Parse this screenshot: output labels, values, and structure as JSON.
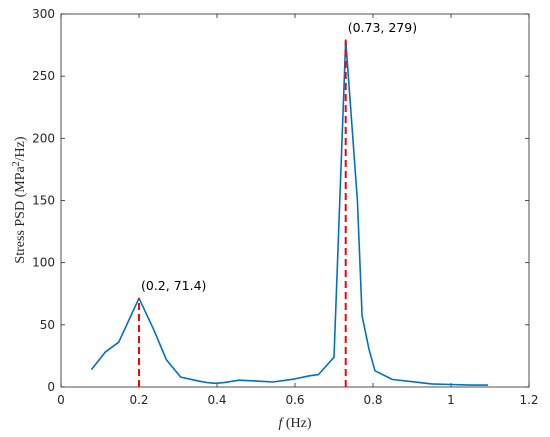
{
  "chart_data": {
    "type": "line",
    "title": "",
    "xlabel_italic": "f",
    "xlabel_rest": " (Hz)",
    "ylabel_base": "Stress PSD (MPa",
    "ylabel_sup": "2",
    "ylabel_end": "/Hz)",
    "xlim": [
      0,
      1.2
    ],
    "ylim": [
      0,
      300
    ],
    "xticks": [
      0,
      0.2,
      0.4,
      0.6,
      0.8,
      1,
      1.2
    ],
    "xtick_labels": [
      "0",
      "0.2",
      "0.4",
      "0.6",
      "0.8",
      "1",
      "1.2"
    ],
    "yticks": [
      0,
      50,
      100,
      150,
      200,
      250,
      300
    ],
    "ytick_labels": [
      "0",
      "50",
      "100",
      "150",
      "200",
      "250",
      "300"
    ],
    "grid": false,
    "series": [
      {
        "color": "#0072BD",
        "x": [
          0.078,
          0.113,
          0.148,
          0.2,
          0.238,
          0.27,
          0.307,
          0.35,
          0.375,
          0.395,
          0.418,
          0.457,
          0.52,
          0.543,
          0.6,
          0.637,
          0.66,
          0.7,
          0.73,
          0.76,
          0.772,
          0.79,
          0.805,
          0.85,
          0.895,
          0.95,
          1.0,
          1.05,
          1.095
        ],
        "y": [
          14,
          28,
          36,
          71.4,
          46,
          22,
          8,
          5,
          3.5,
          3,
          3.5,
          5.5,
          4.5,
          4,
          6.5,
          9,
          10,
          24,
          279,
          150,
          57,
          30,
          13,
          6,
          4.5,
          2.5,
          2,
          1.5,
          1.5
        ]
      }
    ],
    "markers": [
      {
        "x": 0.2,
        "y": 71.4,
        "color": "#FF0000",
        "label": "(0.2, 71.4)"
      },
      {
        "x": 0.73,
        "y": 279,
        "color": "#FF0000",
        "label": "(0.73, 279)"
      }
    ]
  }
}
